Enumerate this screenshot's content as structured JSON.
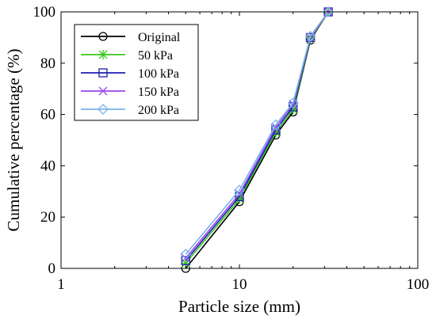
{
  "chart_data": {
    "type": "line",
    "title": "",
    "xlabel": "Particle size (mm)",
    "ylabel": "Cumulative percentage (%)",
    "x_scale": "log",
    "xlim": [
      1,
      100
    ],
    "ylim": [
      0,
      100
    ],
    "x_ticks": [
      1,
      10,
      100
    ],
    "x_tick_labels": [
      "1",
      "10",
      "100"
    ],
    "y_ticks": [
      0,
      20,
      40,
      60,
      80,
      100
    ],
    "y_tick_labels": [
      "0",
      "20",
      "40",
      "60",
      "80",
      "100"
    ],
    "grid": false,
    "legend_position": "top-left",
    "series": [
      {
        "name": "Original",
        "color": "#000000",
        "marker": "circle",
        "x": [
          5,
          10,
          16,
          20,
          25,
          31.5
        ],
        "y": [
          0,
          26,
          52,
          61,
          89,
          100
        ]
      },
      {
        "name": "50 kPa",
        "color": "#39c61e",
        "marker": "asterisk",
        "x": [
          5,
          10,
          16,
          20,
          25,
          31.5
        ],
        "y": [
          2,
          27,
          53,
          62,
          89.5,
          100
        ]
      },
      {
        "name": "100 kPa",
        "color": "#1b1bb5",
        "marker": "square",
        "x": [
          5,
          10,
          16,
          20,
          25,
          31.5
        ],
        "y": [
          3,
          28,
          54,
          63,
          90,
          100
        ]
      },
      {
        "name": "150 kPa",
        "color": "#9b46e6",
        "marker": "x",
        "x": [
          5,
          10,
          16,
          20,
          25,
          31.5
        ],
        "y": [
          4,
          29,
          55,
          64,
          90,
          100
        ]
      },
      {
        "name": "200 kPa",
        "color": "#7ab3ee",
        "marker": "diamond",
        "x": [
          5,
          10,
          16,
          20,
          25,
          31.5
        ],
        "y": [
          5.5,
          30.5,
          56,
          64.5,
          90.5,
          100
        ]
      }
    ]
  }
}
